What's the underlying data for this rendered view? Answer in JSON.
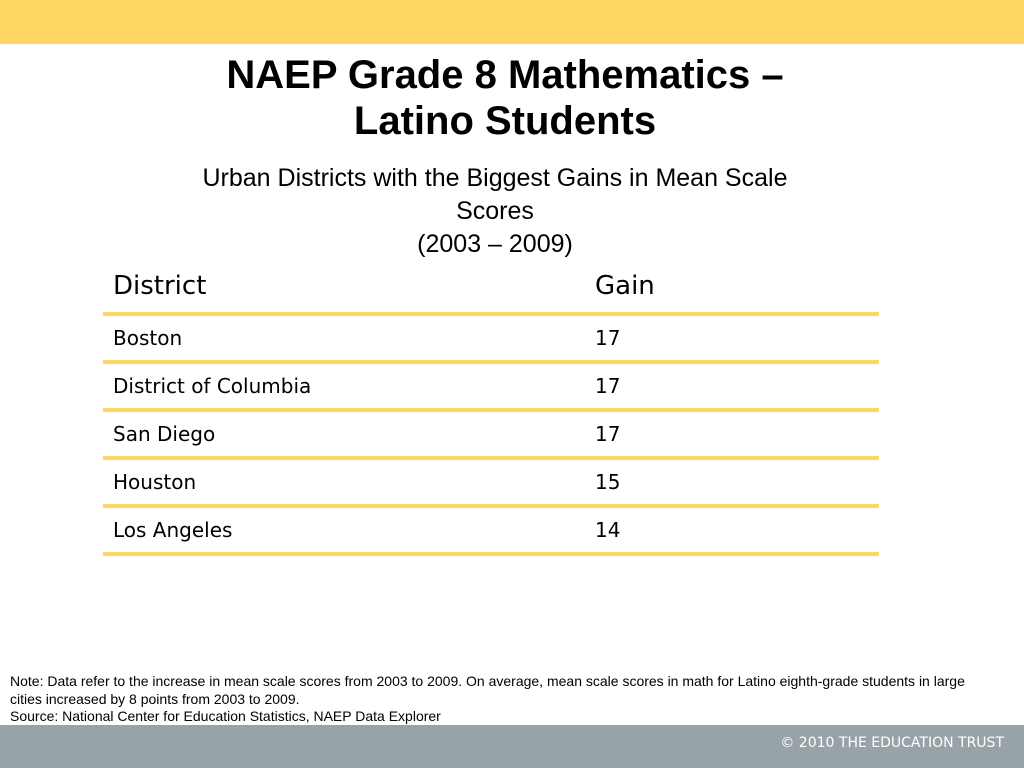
{
  "header": {
    "title_line1": "NAEP Grade 8 Mathematics –",
    "title_line2": "Latino Students",
    "subtitle_line1": "Urban Districts with the Biggest Gains in Mean Scale",
    "subtitle_line2": "Scores",
    "subtitle_line3": "(2003 – 2009)"
  },
  "table": {
    "columns": [
      "District",
      "Gain"
    ],
    "rows": [
      {
        "district": "Boston",
        "gain": "17"
      },
      {
        "district": "District of Columbia",
        "gain": "17"
      },
      {
        "district": "San Diego",
        "gain": "17"
      },
      {
        "district": "Houston",
        "gain": "15"
      },
      {
        "district": "Los Angeles",
        "gain": "14"
      }
    ]
  },
  "footer": {
    "note": "Note: Data refer to the increase in mean scale scores from 2003 to 2009.  On average, mean scale scores in math for Latino eighth-grade students in large cities increased by 8 points from 2003 to 2009.",
    "source": "Source: National Center for Education Statistics, NAEP Data Explorer",
    "copyright": "© 2010 THE EDUCATION TRUST"
  },
  "colors": {
    "accent": "#fdd663",
    "footer_band": "#98a3a8"
  }
}
